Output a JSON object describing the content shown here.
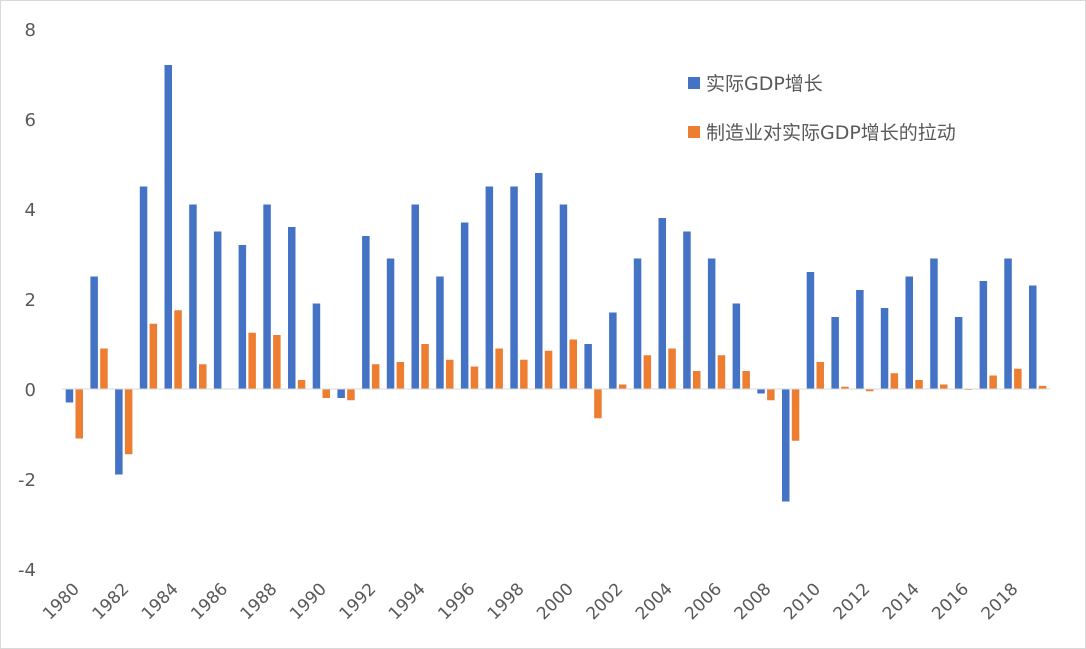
{
  "chart_data": {
    "type": "bar",
    "categories": [
      "1980",
      "1981",
      "1982",
      "1983",
      "1984",
      "1985",
      "1986",
      "1987",
      "1988",
      "1989",
      "1990",
      "1991",
      "1992",
      "1993",
      "1994",
      "1995",
      "1996",
      "1997",
      "1998",
      "1999",
      "2000",
      "2001",
      "2002",
      "2003",
      "2004",
      "2005",
      "2006",
      "2007",
      "2008",
      "2009",
      "2010",
      "2011",
      "2012",
      "2013",
      "2014",
      "2015",
      "2016",
      "2017",
      "2018",
      "2019"
    ],
    "x_tick_labels": [
      "1980",
      "1982",
      "1984",
      "1986",
      "1988",
      "1990",
      "1992",
      "1994",
      "1996",
      "1998",
      "2000",
      "2002",
      "2004",
      "2006",
      "2008",
      "2010",
      "2012",
      "2014",
      "2016",
      "2018"
    ],
    "series": [
      {
        "name": "实际GDP增长",
        "color": "#4472c4",
        "values": [
          -0.3,
          2.5,
          -1.9,
          4.5,
          7.2,
          4.1,
          3.5,
          3.2,
          4.1,
          3.6,
          1.9,
          -0.2,
          3.4,
          2.9,
          4.1,
          2.5,
          3.7,
          4.5,
          4.5,
          4.8,
          4.1,
          1.0,
          1.7,
          2.9,
          3.8,
          3.5,
          2.9,
          1.9,
          -0.1,
          -2.5,
          2.6,
          1.6,
          2.2,
          1.8,
          2.5,
          2.9,
          1.6,
          2.4,
          2.9,
          2.3
        ]
      },
      {
        "name": "制造业对实际GDP增长的拉动",
        "color": "#ed7d31",
        "values": [
          -1.1,
          0.9,
          -1.45,
          1.45,
          1.75,
          0.55,
          0.0,
          1.25,
          1.2,
          0.2,
          -0.2,
          -0.25,
          0.55,
          0.6,
          1.0,
          0.65,
          0.5,
          0.9,
          0.65,
          0.85,
          1.1,
          -0.65,
          0.1,
          0.75,
          0.9,
          0.4,
          0.75,
          0.4,
          -0.25,
          -1.15,
          0.6,
          0.05,
          -0.05,
          0.35,
          0.2,
          0.1,
          -0.02,
          0.3,
          0.45,
          0.07
        ]
      }
    ],
    "y_ticks": [
      "8",
      "6",
      "4",
      "2",
      "0",
      "-2",
      "-4"
    ],
    "ylim": [
      -4,
      8
    ],
    "title": "",
    "xlabel": "",
    "ylabel": "",
    "grid": false,
    "legend_position": "top-right",
    "axis_color": "#d9d9d9"
  }
}
